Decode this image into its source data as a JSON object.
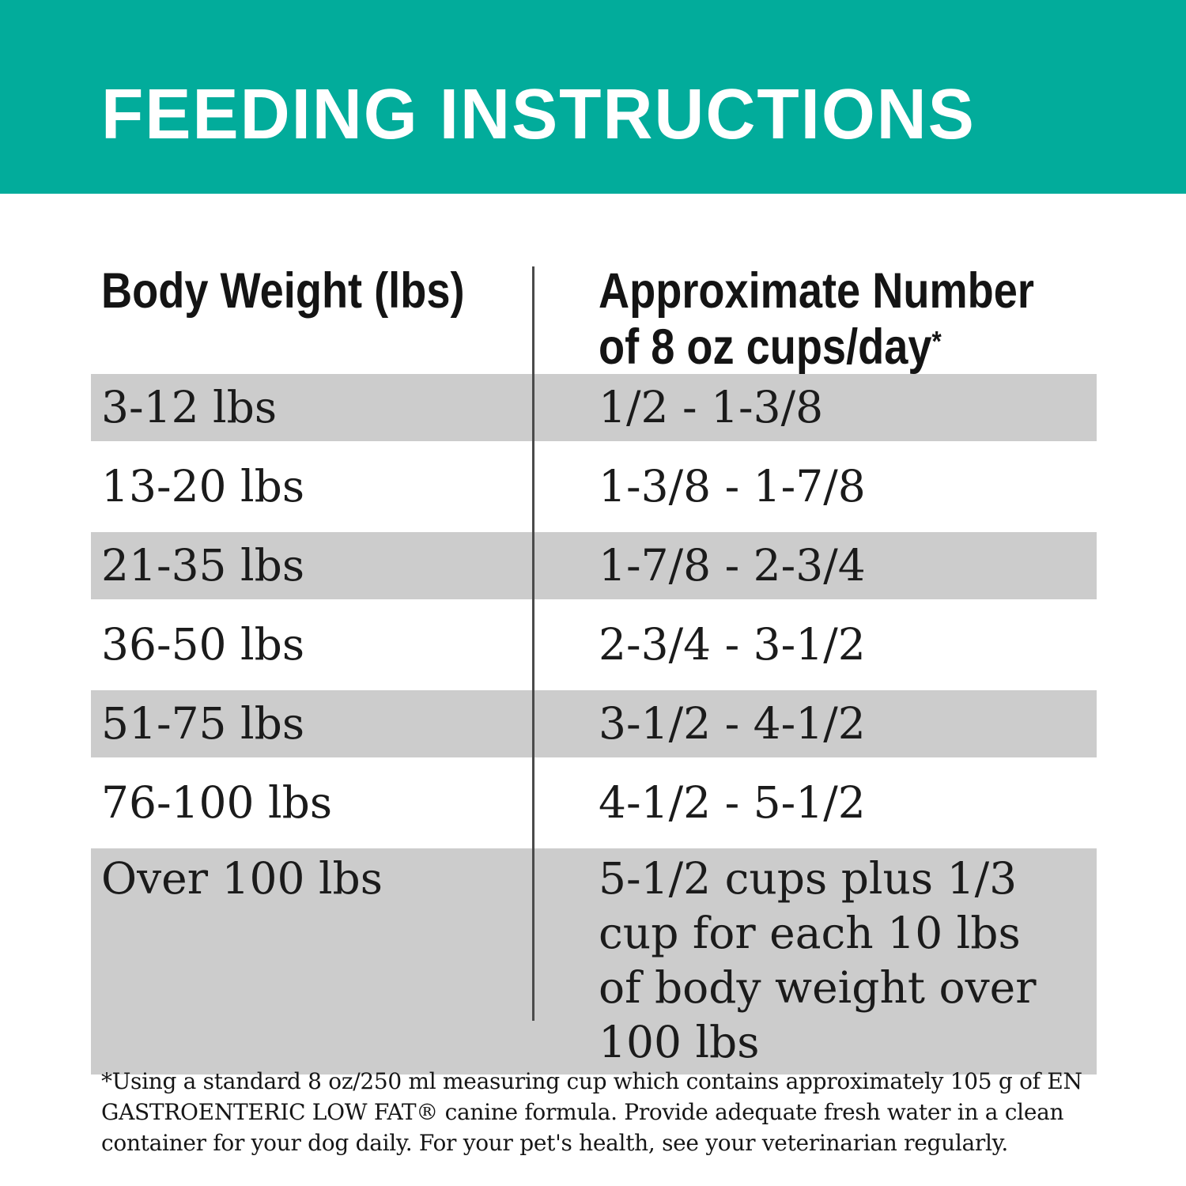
{
  "header": {
    "title": "FEEDING INSTRUCTIONS"
  },
  "table": {
    "column_headers": {
      "body_weight": "Body Weight (lbs)",
      "cups_line1": "Approximate Number",
      "cups_line2": "of 8 oz cups/day",
      "footnote_marker": "*"
    },
    "rows": [
      {
        "body_weight": "3-12 lbs",
        "cups_per_day": "1/2 - 1-3/8"
      },
      {
        "body_weight": "13-20 lbs",
        "cups_per_day": "1-3/8 - 1-7/8"
      },
      {
        "body_weight": "21-35 lbs",
        "cups_per_day": "1-7/8 - 2-3/4"
      },
      {
        "body_weight": "36-50 lbs",
        "cups_per_day": "2-3/4 - 3-1/2"
      },
      {
        "body_weight": "51-75 lbs",
        "cups_per_day": "3-1/2 - 4-1/2"
      },
      {
        "body_weight": "76-100 lbs",
        "cups_per_day": "4-1/2 - 5-1/2"
      },
      {
        "body_weight": "Over 100 lbs",
        "cups_per_day": "5-1/2 cups plus 1/3 cup for each 10 lbs of body weight over 100 lbs"
      }
    ]
  },
  "footnote": "*Using a standard 8 oz/250 ml measuring cup which contains approximately 105 g of EN GASTROENTERIC LOW FAT® canine formula. Provide adequate fresh water in a clean container for your dog daily. For your pet's health, see your veterinarian regularly.",
  "colors": {
    "accent_teal": "#02AC9B",
    "row_shade": "#CCCCCC"
  }
}
